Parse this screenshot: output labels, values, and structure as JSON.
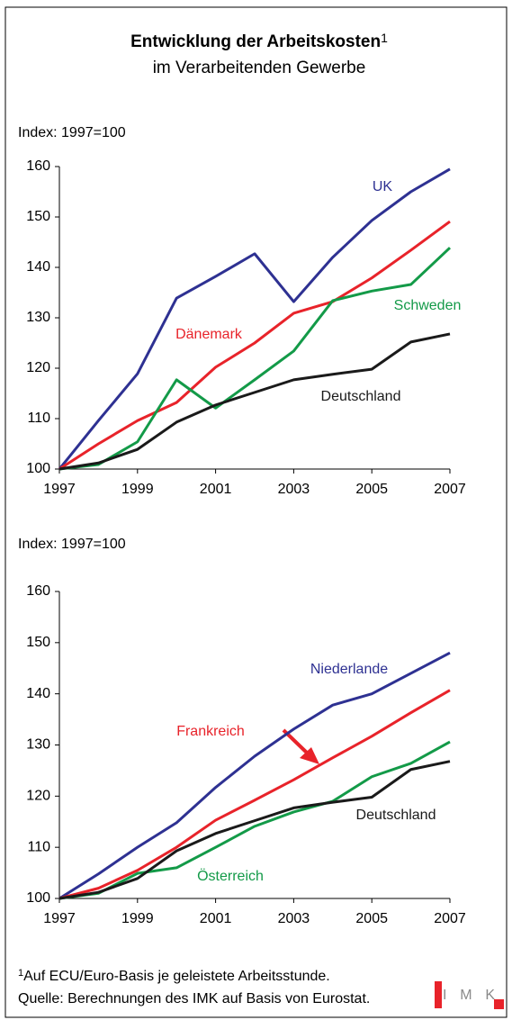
{
  "title": "Entwicklung der Arbeitskosten",
  "title_note": "1",
  "subtitle": "im Verarbeitenden Gewerbe",
  "chart_data": [
    {
      "type": "line",
      "ylabel": "Index: 1997=100",
      "x": [
        1997,
        1998,
        1999,
        2000,
        2001,
        2002,
        2003,
        2004,
        2005,
        2006,
        2007
      ],
      "xlim": [
        1997,
        2007
      ],
      "xticks": [
        1997,
        1999,
        2001,
        2003,
        2005,
        2007
      ],
      "ylim": [
        100,
        160
      ],
      "yticks": [
        100,
        110,
        120,
        130,
        140,
        150,
        160
      ],
      "series": [
        {
          "name": "UK",
          "color": "#2e3192",
          "values": [
            100,
            109.6,
            118.9,
            133.9,
            138.2,
            142.7,
            133.2,
            142,
            149.3,
            155,
            159.5
          ]
        },
        {
          "name": "Dänemark",
          "color": "#e8232a",
          "values": [
            100,
            105,
            109.6,
            113.2,
            120.2,
            125,
            130.9,
            133.2,
            137.9,
            143.4,
            149.1
          ]
        },
        {
          "name": "Schweden",
          "color": "#139a48",
          "values": [
            100,
            100.9,
            105.4,
            117.7,
            112.1,
            117.7,
            123.4,
            133.4,
            135.3,
            136.6,
            143.9
          ]
        },
        {
          "name": "Deutschland",
          "color": "#1a1a1a",
          "values": [
            100,
            101.2,
            103.9,
            109.3,
            112.7,
            115.2,
            117.7,
            118.8,
            119.8,
            125.2,
            126.8
          ]
        }
      ]
    },
    {
      "type": "line",
      "ylabel": "Index: 1997=100",
      "x": [
        1997,
        1998,
        1999,
        2000,
        2001,
        2002,
        2003,
        2004,
        2005,
        2006,
        2007
      ],
      "xlim": [
        1997,
        2007
      ],
      "xticks": [
        1997,
        1999,
        2001,
        2003,
        2005,
        2007
      ],
      "ylim": [
        100,
        160
      ],
      "yticks": [
        100,
        110,
        120,
        130,
        140,
        150,
        160
      ],
      "series": [
        {
          "name": "Niederlande",
          "color": "#2e3192",
          "values": [
            100,
            104.8,
            110,
            114.8,
            121.7,
            127.8,
            133.1,
            137.8,
            140,
            144,
            148
          ]
        },
        {
          "name": "Frankreich",
          "color": "#e8232a",
          "values": [
            100,
            102,
            105.5,
            110,
            115.3,
            119.2,
            123.2,
            127.5,
            131.7,
            136.3,
            140.7
          ]
        },
        {
          "name": "Österreich",
          "color": "#139a48",
          "values": [
            100,
            101,
            104.9,
            106,
            110,
            114.1,
            116.9,
            119,
            123.8,
            126.4,
            130.6
          ]
        },
        {
          "name": "Deutschland",
          "color": "#1a1a1a",
          "values": [
            100,
            101.2,
            103.9,
            109.3,
            112.7,
            115.2,
            117.7,
            118.8,
            119.8,
            125.2,
            126.8
          ]
        }
      ]
    }
  ],
  "footnote": {
    "marker": "1",
    "text": "Auf ECU/Euro-Basis je geleistete Arbeitsstunde."
  },
  "source": "Quelle: Berechnungen des IMK auf Basis von Eurostat.",
  "logo": "IMK"
}
